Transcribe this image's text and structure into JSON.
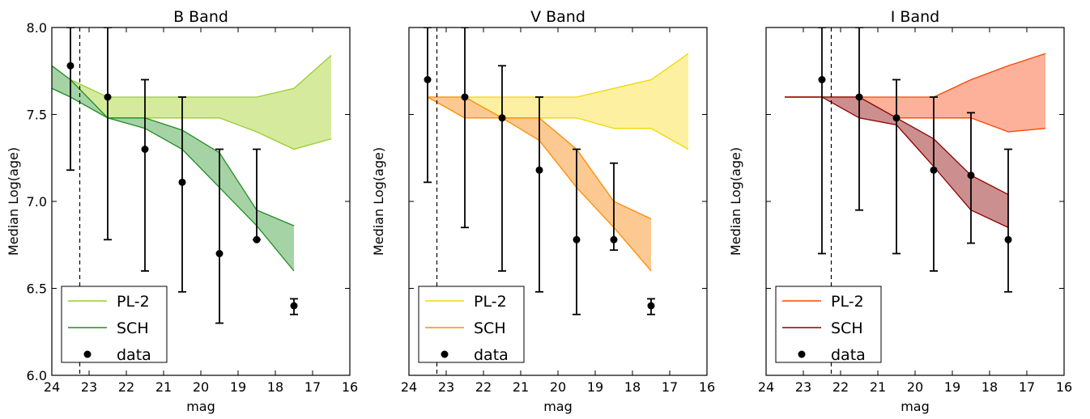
{
  "chart_data": [
    {
      "type": "line",
      "title": "B Band",
      "xlabel": "mag",
      "ylabel": "Median Log(age)",
      "xlim": [
        24,
        16
      ],
      "ylim": [
        6.0,
        8.0
      ],
      "xticks": [
        "24",
        "23",
        "22",
        "21",
        "20",
        "19",
        "18",
        "17",
        "16"
      ],
      "yticks": [
        "6.0",
        "6.5",
        "7.0",
        "7.5",
        "8.0"
      ],
      "cutoff_mag": 23.25,
      "legend_position": "lower-left",
      "series": [
        {
          "name": "PL-2",
          "color": "#9acd32",
          "fill": "#d6ea9e",
          "x": [
            23.5,
            22.5,
            21.5,
            20.5,
            19.5,
            18.5,
            17.5,
            16.5
          ],
          "upper": [
            7.7,
            7.6,
            7.6,
            7.6,
            7.6,
            7.6,
            7.65,
            7.84
          ],
          "lower": [
            7.6,
            7.48,
            7.48,
            7.48,
            7.48,
            7.4,
            7.3,
            7.36
          ]
        },
        {
          "name": "SCH",
          "color": "#228b22",
          "fill": "#a6d3a6",
          "x": [
            24.0,
            23.5,
            22.5,
            21.5,
            20.5,
            19.5,
            18.5,
            17.5
          ],
          "upper": [
            7.78,
            7.7,
            7.48,
            7.48,
            7.41,
            7.28,
            6.95,
            6.86
          ],
          "lower": [
            7.65,
            7.6,
            7.48,
            7.42,
            7.3,
            7.08,
            6.86,
            6.6
          ]
        }
      ],
      "data_points": {
        "name": "data",
        "x": [
          23.5,
          22.5,
          21.5,
          20.5,
          19.5,
          18.5,
          17.5
        ],
        "y": [
          7.78,
          7.6,
          7.3,
          7.11,
          6.7,
          6.78,
          6.4
        ],
        "err_low": [
          7.18,
          6.78,
          6.6,
          6.48,
          6.3,
          6.78,
          6.35
        ],
        "err_high": [
          8.0,
          8.0,
          7.7,
          7.6,
          7.3,
          7.3,
          6.44
        ]
      }
    },
    {
      "type": "line",
      "title": "V Band",
      "xlabel": "mag",
      "ylabel": "Median Log(age)",
      "xlim": [
        24,
        16
      ],
      "ylim": [
        6.0,
        8.0
      ],
      "xticks": [
        "24",
        "23",
        "22",
        "21",
        "20",
        "19",
        "18",
        "17",
        "16"
      ],
      "yticks": [],
      "cutoff_mag": 23.25,
      "legend_position": "lower-left",
      "series": [
        {
          "name": "PL-2",
          "color": "#f0d800",
          "fill": "#fdf0a0",
          "x": [
            23.5,
            22.5,
            21.5,
            20.5,
            19.5,
            18.5,
            17.5,
            16.5
          ],
          "upper": [
            7.6,
            7.6,
            7.6,
            7.6,
            7.6,
            7.65,
            7.7,
            7.85
          ],
          "lower": [
            7.6,
            7.48,
            7.48,
            7.48,
            7.48,
            7.42,
            7.42,
            7.3
          ]
        },
        {
          "name": "SCH",
          "color": "#ff8c00",
          "fill": "#fdc993",
          "x": [
            23.5,
            22.5,
            21.5,
            20.5,
            19.5,
            18.5,
            17.5
          ],
          "upper": [
            7.6,
            7.6,
            7.48,
            7.48,
            7.3,
            7.0,
            6.9
          ],
          "lower": [
            7.6,
            7.48,
            7.48,
            7.35,
            7.08,
            6.85,
            6.6
          ]
        }
      ],
      "data_points": {
        "name": "data",
        "x": [
          23.5,
          22.5,
          21.5,
          20.5,
          19.5,
          18.5,
          17.5
        ],
        "y": [
          7.7,
          7.6,
          7.48,
          7.18,
          6.78,
          6.78,
          6.4
        ],
        "err_low": [
          7.11,
          6.85,
          6.6,
          6.48,
          6.35,
          6.72,
          6.35
        ],
        "err_high": [
          8.0,
          8.0,
          7.78,
          7.6,
          7.3,
          7.22,
          6.44
        ]
      }
    },
    {
      "type": "line",
      "title": "I Band",
      "xlabel": "mag",
      "ylabel": "Median Log(age)",
      "xlim": [
        24,
        16
      ],
      "ylim": [
        6.0,
        8.0
      ],
      "xticks": [
        "24",
        "23",
        "22",
        "21",
        "20",
        "19",
        "18",
        "17",
        "16"
      ],
      "yticks": [],
      "cutoff_mag": 22.25,
      "legend_position": "lower-left",
      "series": [
        {
          "name": "PL-2",
          "color": "#ff4500",
          "fill": "#fdb19a",
          "x": [
            23.5,
            22.5,
            21.5,
            20.5,
            19.5,
            18.5,
            17.5,
            16.5
          ],
          "upper": [
            7.6,
            7.6,
            7.6,
            7.6,
            7.6,
            7.7,
            7.78,
            7.85
          ],
          "lower": [
            7.6,
            7.6,
            7.6,
            7.48,
            7.48,
            7.48,
            7.4,
            7.42
          ]
        },
        {
          "name": "SCH",
          "color": "#8b0000",
          "fill": "#cc8f8f",
          "x": [
            23.5,
            22.5,
            21.5,
            20.5,
            19.5,
            18.5,
            17.5
          ],
          "upper": [
            7.6,
            7.6,
            7.6,
            7.48,
            7.36,
            7.15,
            7.04
          ],
          "lower": [
            7.6,
            7.6,
            7.48,
            7.44,
            7.2,
            6.95,
            6.85
          ]
        }
      ],
      "data_points": {
        "name": "data",
        "x": [
          22.5,
          21.5,
          20.5,
          19.5,
          18.5,
          17.5
        ],
        "y": [
          7.7,
          7.6,
          7.48,
          7.18,
          7.15,
          6.78
        ],
        "err_low": [
          6.7,
          6.95,
          6.7,
          6.6,
          6.76,
          6.48
        ],
        "err_high": [
          8.0,
          8.0,
          7.7,
          7.6,
          7.51,
          7.3
        ]
      }
    }
  ]
}
